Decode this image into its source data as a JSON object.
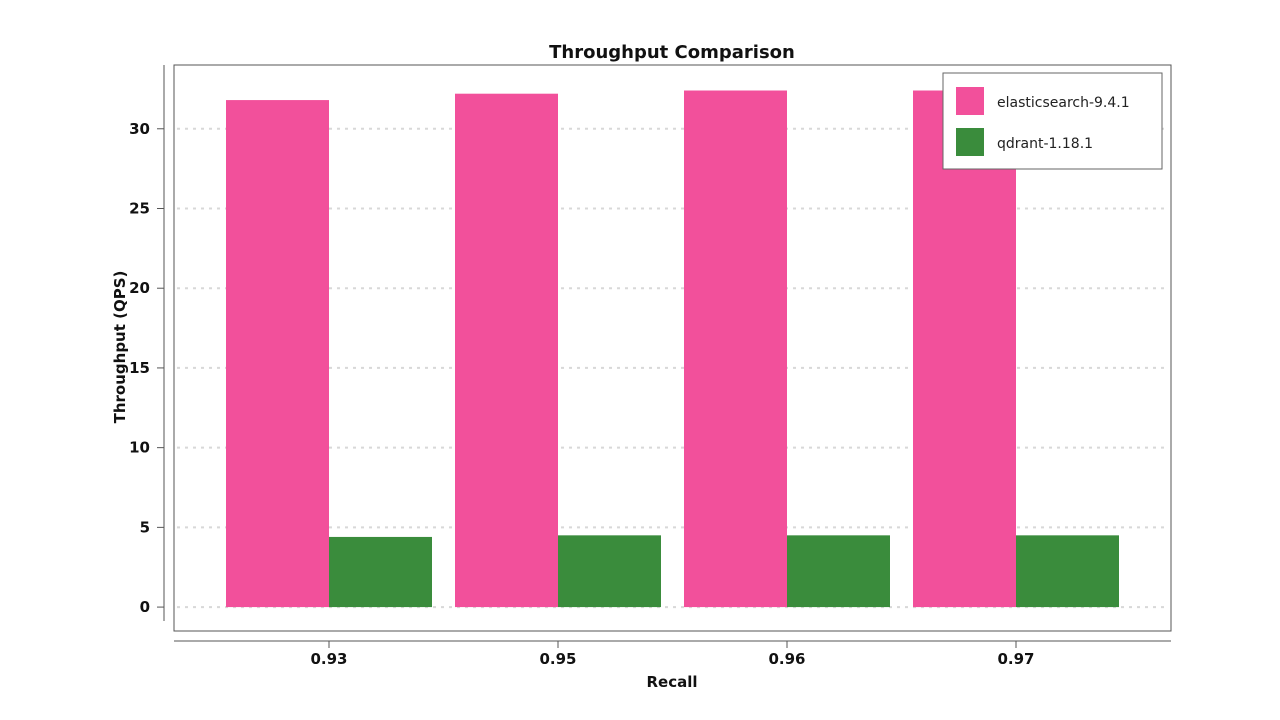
{
  "chart_data": {
    "type": "bar",
    "title": "Throughput Comparison",
    "xlabel": "Recall",
    "ylabel": "Throughput (QPS)",
    "categories": [
      "0.93",
      "0.95",
      "0.96",
      "0.97"
    ],
    "series": [
      {
        "name": "elasticsearch-9.4.1",
        "color": "#f2509b",
        "values": [
          31.8,
          32.2,
          32.4,
          32.4
        ]
      },
      {
        "name": "qdrant-1.18.1",
        "color": "#3a8c3c",
        "values": [
          4.4,
          4.5,
          4.5,
          4.5
        ]
      }
    ],
    "ylim": [
      -1.5,
      34
    ],
    "yticks": [
      0,
      5,
      10,
      15,
      20,
      25,
      30
    ],
    "grid": true,
    "legend_position": "top-right"
  }
}
